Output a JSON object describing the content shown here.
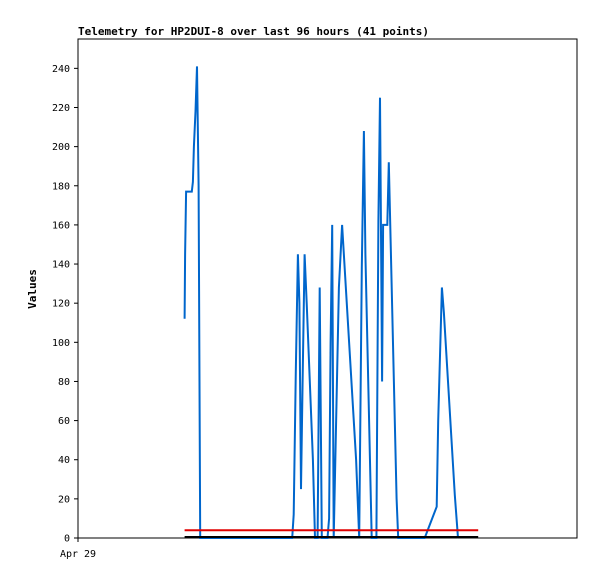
{
  "chart_data": {
    "type": "line",
    "title": "Telemetry for HP2DUI-8 over last 96 hours (41 points)",
    "xlabel": "",
    "ylabel": "Values",
    "x_tick_labels": [
      "Apr 29"
    ],
    "ylim": [
      0,
      255
    ],
    "y_ticks": [
      0,
      20,
      40,
      60,
      80,
      100,
      120,
      140,
      160,
      180,
      200,
      220,
      240
    ],
    "grid": false,
    "legend": "none",
    "series": [
      {
        "color": "#0066cc",
        "points": [
          [
            20.5,
            112
          ],
          [
            20.6,
            145
          ],
          [
            20.8,
            177
          ],
          [
            21.9,
            177
          ],
          [
            22.1,
            182
          ],
          [
            22.3,
            200
          ],
          [
            22.6,
            218
          ],
          [
            22.9,
            241
          ],
          [
            23.2,
            180
          ],
          [
            23.5,
            0
          ],
          [
            41.2,
            0
          ],
          [
            41.5,
            12
          ],
          [
            41.9,
            85
          ],
          [
            42.3,
            145
          ],
          [
            42.6,
            120
          ],
          [
            42.9,
            25
          ],
          [
            43.2,
            80
          ],
          [
            43.6,
            145
          ],
          [
            44.0,
            120
          ],
          [
            45.2,
            40
          ],
          [
            45.6,
            0
          ],
          [
            46.1,
            0
          ],
          [
            46.5,
            128
          ],
          [
            46.9,
            0
          ],
          [
            48.0,
            0
          ],
          [
            48.3,
            10
          ],
          [
            48.6,
            100
          ],
          [
            48.9,
            160
          ],
          [
            49.2,
            0
          ],
          [
            50.2,
            128
          ],
          [
            50.8,
            160
          ],
          [
            53.5,
            40
          ],
          [
            54.1,
            0
          ],
          [
            54.6,
            138
          ],
          [
            55.0,
            208
          ],
          [
            55.3,
            145
          ],
          [
            56.5,
            0
          ],
          [
            57.4,
            0
          ],
          [
            57.8,
            162
          ],
          [
            58.1,
            225
          ],
          [
            58.5,
            80
          ],
          [
            58.7,
            160
          ],
          [
            59.5,
            160
          ],
          [
            59.8,
            192
          ],
          [
            61.3,
            20
          ],
          [
            61.6,
            0
          ],
          [
            66.7,
            0
          ],
          [
            69.0,
            16
          ],
          [
            69.3,
            60
          ],
          [
            70.0,
            128
          ],
          [
            70.4,
            115
          ],
          [
            72.5,
            22
          ],
          [
            73.1,
            0
          ]
        ]
      },
      {
        "color": "#e00000",
        "points": [
          [
            20.5,
            4
          ],
          [
            77.0,
            4
          ]
        ]
      },
      {
        "color": "#000000",
        "points": [
          [
            20.5,
            0.5
          ],
          [
            77.0,
            0.5
          ]
        ]
      }
    ]
  }
}
